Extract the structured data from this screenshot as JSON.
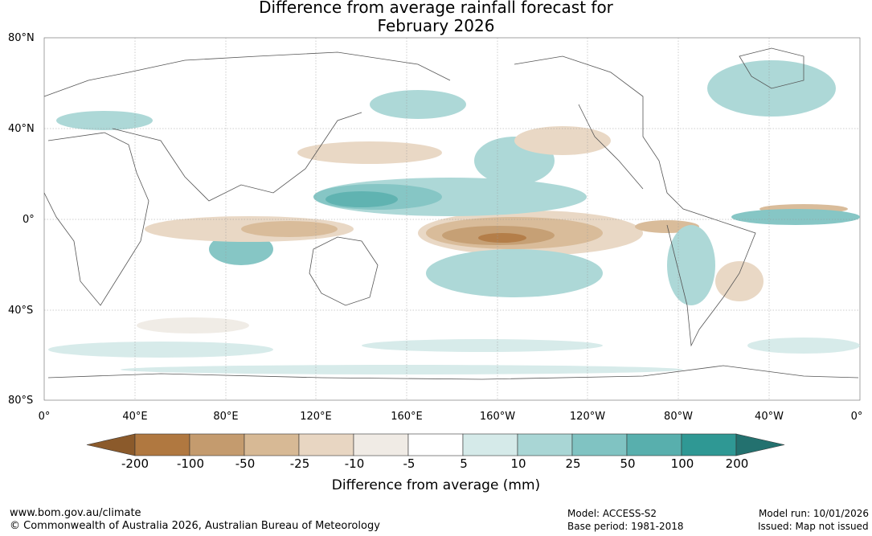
{
  "title_line1": "Difference from average rainfall forecast for",
  "title_line2": "February 2026",
  "lat_labels": [
    "80°N",
    "40°N",
    "0°",
    "40°S",
    "80°S"
  ],
  "lon_labels": [
    "0°",
    "40°E",
    "80°E",
    "120°E",
    "160°E",
    "160°W",
    "120°W",
    "80°W",
    "40°W",
    "0°"
  ],
  "colorbar": {
    "title": "Difference from average (mm)",
    "ticks": [
      "-200",
      "-100",
      "-50",
      "-25",
      "-10",
      "-5",
      "5",
      "10",
      "25",
      "50",
      "100",
      "200"
    ],
    "colors": [
      "#8b5a2b",
      "#b07840",
      "#c49b6e",
      "#d7b995",
      "#e8d6c2",
      "#f0ebe5",
      "#ffffff",
      "#d5eae9",
      "#a9d6d5",
      "#80c3c2",
      "#58afad",
      "#2f9894",
      "#23716f"
    ]
  },
  "footer": {
    "url": "www.bom.gov.au/climate",
    "copyright": "© Commonwealth of Australia 2026, Australian Bureau of Meteorology",
    "model": "Model: ACCESS-S2",
    "base_period": "Base period: 1981-2018",
    "model_run": "Model run: 10/01/2026",
    "issued": "Issued: Map not issued"
  }
}
